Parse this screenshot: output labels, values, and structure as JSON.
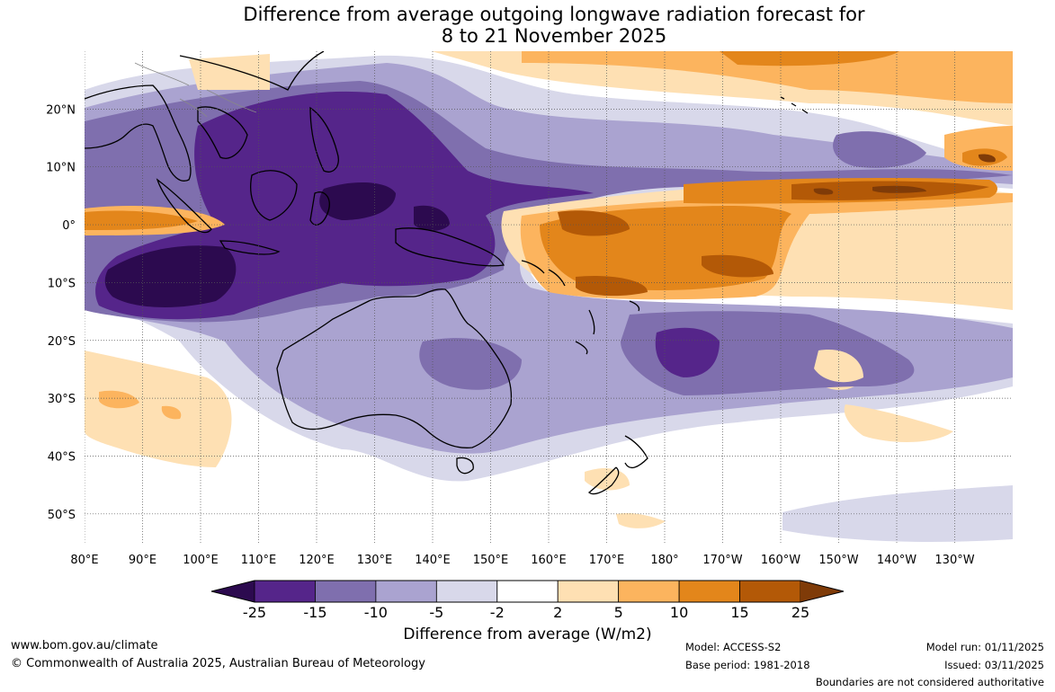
{
  "title": {
    "line1": "Difference from average outgoing longwave radiation forecast for",
    "line2": "8 to 21 November 2025"
  },
  "axes": {
    "longitude_labels": [
      "80°E",
      "90°E",
      "100°E",
      "110°E",
      "120°E",
      "130°E",
      "140°E",
      "150°E",
      "160°E",
      "170°E",
      "180°",
      "170°W",
      "160°W",
      "150°W",
      "140°W",
      "130°W"
    ],
    "latitude_labels": [
      "20°N",
      "10°N",
      "0°",
      "10°S",
      "20°S",
      "30°S",
      "40°S",
      "50°S"
    ],
    "lon_range": [
      80,
      240
    ],
    "lat_range": [
      -55,
      30
    ],
    "lon_grid_step": 10,
    "lat_grid_step": 10
  },
  "colorbar": {
    "title": "Difference from average (W/m2)",
    "tick_labels": [
      "-25",
      "-15",
      "-10",
      "-5",
      "-2",
      "2",
      "5",
      "10",
      "15",
      "25"
    ],
    "colors": {
      "below_minus25": "#2c0a4f",
      "minus25_minus15": "#55258a",
      "minus15_minus10": "#7f6fae",
      "minus10_minus5": "#aaa3d0",
      "minus5_minus2": "#d8d8ea",
      "minus2_2": "#ffffff",
      "2_5": "#fee0b3",
      "5_10": "#fcb45e",
      "10_15": "#e3861b",
      "15_25": "#b35907",
      "above_25": "#7f3b08"
    }
  },
  "footer": {
    "url": "www.bom.gov.au/climate",
    "copyright": "© Commonwealth of Australia 2025, Australian Bureau of Meteorology",
    "model": "Model: ACCESS-S2",
    "base_period": "Base period: 1981-2018",
    "model_run": "Model run: 01/11/2025",
    "issued": "Issued: 03/11/2025",
    "disclaimer": "Boundaries are not considered authoritative"
  }
}
